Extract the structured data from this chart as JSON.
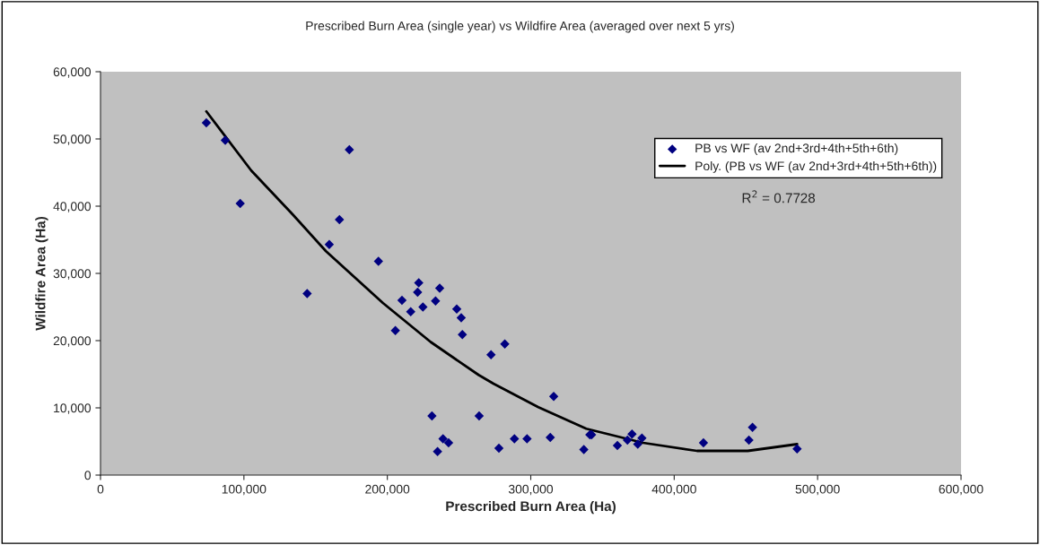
{
  "chart_data": {
    "type": "scatter",
    "title": "Prescribed Burn Area (single year) vs Wildfire Area (averaged over next 5 yrs)",
    "xlabel": "Prescribed Burn Area (Ha)",
    "ylabel": "Wildfire Area (Ha)",
    "xlim": [
      0,
      600000
    ],
    "xticks": [
      {
        "value": 0,
        "label": "0"
      },
      {
        "value": 100000,
        "label": "100,000"
      },
      {
        "value": 200000,
        "label": "200,000"
      },
      {
        "value": 300000,
        "label": "300,000"
      },
      {
        "value": 400000,
        "label": "400,000"
      },
      {
        "value": 500000,
        "label": "500,000"
      },
      {
        "value": 600000,
        "label": "600,000"
      }
    ],
    "ylim": [
      0,
      60000
    ],
    "yticks": [
      {
        "value": 0,
        "label": "0"
      },
      {
        "value": 10000,
        "label": "10,000"
      },
      {
        "value": 20000,
        "label": "20,000"
      },
      {
        "value": 30000,
        "label": "30,000"
      },
      {
        "value": 40000,
        "label": "40,000"
      },
      {
        "value": 50000,
        "label": "50,000"
      },
      {
        "value": 60000,
        "label": "60,000"
      }
    ],
    "grid": false,
    "legend": "top right",
    "annotations": [
      "R$^{2}$ = 0.7728"
    ],
    "series": [
      {
        "marker": "diamond",
        "name": "PB vs WF (av 2nd+3rd+4th+5th+6th)",
        "color": "#000080",
        "x": [
          73800,
          87000,
          97400,
          173500,
          166600,
          159500,
          193800,
          144100,
          221900,
          221100,
          236500,
          210200,
          233600,
          216300,
          224800,
          248400,
          251500,
          252300,
          205600,
          281900,
          272300,
          231100,
          264000,
          238800,
          242700,
          235000,
          277800,
          288600,
          297400,
          316000,
          313600,
          337000,
          341200,
          342400,
          360400,
          367400,
          370600,
          374600,
          377500,
          420400,
          452100,
          454600,
          485700
        ],
        "values": [
          52400,
          49800,
          40400,
          48400,
          38000,
          34300,
          31800,
          27000,
          28600,
          27200,
          27800,
          26000,
          25900,
          24300,
          25000,
          24700,
          23400,
          20900,
          21500,
          19500,
          17900,
          8800,
          8800,
          5400,
          4800,
          3500,
          4000,
          5400,
          5400,
          11700,
          5600,
          3800,
          6000,
          6000,
          4400,
          5200,
          6100,
          4600,
          5500,
          4800,
          5200,
          7100,
          3900
        ]
      },
      {
        "type": "line",
        "marker": "none",
        "name": "Poly. (PB vs WF (av 2nd+3rd+4th+5th+6th))",
        "color": "#000000",
        "x": [
          73800,
          105100,
          134300,
          157200,
          196900,
          230200,
          263600,
          274000,
          305300,
          338700,
          378300,
          415900,
          451300,
          485700
        ],
        "values": [
          54100,
          45300,
          38700,
          33300,
          25600,
          19800,
          14900,
          13600,
          10100,
          6900,
          4800,
          3600,
          3600,
          4600
        ]
      }
    ]
  }
}
